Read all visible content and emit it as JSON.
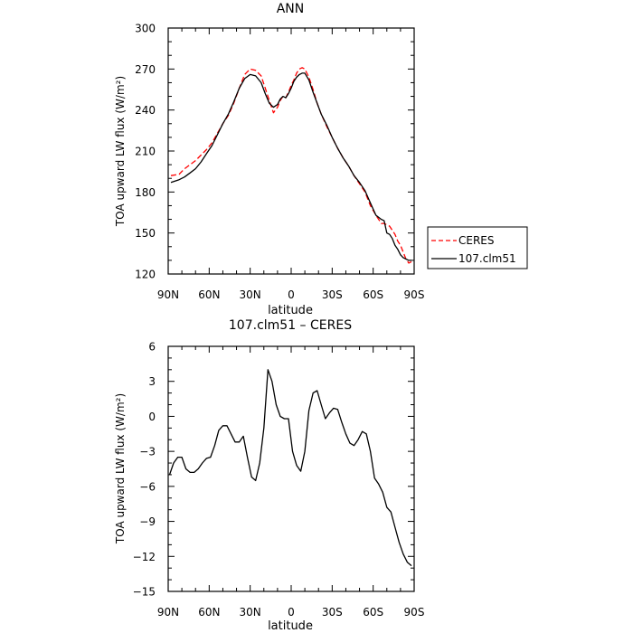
{
  "chart_data": [
    {
      "type": "line",
      "title": "ANN",
      "xlabel": "latitude",
      "ylabel": "TOA upward LW flux (W/m²)",
      "xlim": [
        90,
        -90
      ],
      "ylim": [
        120,
        300
      ],
      "yticks": [
        120,
        150,
        180,
        210,
        240,
        270,
        300
      ],
      "xtick_values": [
        90,
        60,
        30,
        0,
        -30,
        -60,
        -90
      ],
      "xtick_labels": [
        "90N",
        "60N",
        "30N",
        "0",
        "30S",
        "60S",
        "90S"
      ],
      "grid": false,
      "legend_position": "right",
      "series": [
        {
          "name": "CERES",
          "color": "#ff0000",
          "dash": "dashed",
          "x": [
            88,
            82,
            78,
            74,
            70,
            66,
            62,
            58,
            54,
            50,
            46,
            42,
            38,
            34,
            30,
            26,
            22,
            19,
            16,
            13,
            10,
            8,
            6,
            4,
            2,
            0,
            -2,
            -4,
            -6,
            -8,
            -10,
            -13,
            -16,
            -19,
            -22,
            -26,
            -30,
            -34,
            -38,
            -42,
            -46,
            -50,
            -54,
            -58,
            -62,
            -66,
            -68,
            -70,
            -72,
            -74,
            -76,
            -78,
            -80,
            -82,
            -84,
            -86,
            -88
          ],
          "y": [
            192,
            193,
            197,
            200,
            203,
            207,
            211,
            216,
            223,
            230,
            236,
            245,
            256,
            266,
            270,
            269,
            265,
            256,
            247,
            238,
            242,
            247,
            250,
            249,
            253,
            258,
            262,
            267,
            270,
            271,
            270,
            264,
            255,
            245,
            237,
            228,
            220,
            212,
            205,
            199,
            192,
            186,
            180,
            170,
            163,
            157,
            157,
            156,
            155,
            152,
            149,
            144,
            141,
            136,
            131,
            128,
            129
          ]
        },
        {
          "name": "107.clm51",
          "color": "#000000",
          "dash": "solid",
          "x": [
            88,
            82,
            78,
            74,
            70,
            66,
            62,
            58,
            54,
            50,
            46,
            42,
            38,
            34,
            30,
            26,
            22,
            19,
            16,
            13,
            10,
            8,
            6,
            4,
            2,
            0,
            -2,
            -4,
            -6,
            -8,
            -10,
            -13,
            -16,
            -19,
            -22,
            -26,
            -30,
            -34,
            -38,
            -42,
            -46,
            -50,
            -54,
            -58,
            -62,
            -66,
            -68,
            -70,
            -72,
            -74,
            -76,
            -78,
            -80,
            -82,
            -84,
            -86,
            -88
          ],
          "y": [
            187,
            189,
            191,
            194,
            197,
            202,
            208,
            214,
            222,
            230,
            237,
            246,
            256,
            263,
            266,
            265,
            260,
            252,
            245,
            242,
            244,
            248,
            250,
            249,
            252,
            256,
            261,
            264,
            266,
            267,
            267,
            262,
            253,
            245,
            237,
            229,
            220,
            212,
            205,
            199,
            192,
            187,
            181,
            172,
            163,
            160,
            159,
            150,
            149,
            146,
            141,
            138,
            134,
            132,
            131,
            130,
            130
          ]
        }
      ]
    },
    {
      "type": "line",
      "title": "107.clm51 – CERES",
      "xlabel": "latitude",
      "ylabel": "TOA upward LW flux (W/m²)",
      "xlim": [
        90,
        -90
      ],
      "ylim": [
        -15,
        6
      ],
      "yticks": [
        -15,
        -12,
        -9,
        -6,
        -3,
        0,
        3,
        6
      ],
      "xtick_values": [
        90,
        60,
        30,
        0,
        -30,
        -60,
        -90
      ],
      "xtick_labels": [
        "90N",
        "60N",
        "30N",
        "0",
        "30S",
        "60S",
        "90S"
      ],
      "grid": false,
      "series": [
        {
          "color": "#000000",
          "dash": "solid",
          "x": [
            89,
            86,
            83,
            80,
            77,
            74,
            71,
            68,
            65,
            62,
            59,
            56,
            53,
            50,
            47,
            44,
            41,
            38,
            35,
            32,
            29,
            26,
            23,
            20,
            17,
            14,
            11,
            8,
            5,
            2,
            -1,
            -4,
            -7,
            -10,
            -13,
            -16,
            -19,
            -22,
            -25,
            -28,
            -31,
            -34,
            -37,
            -40,
            -43,
            -46,
            -49,
            -52,
            -55,
            -58,
            -61,
            -64,
            -67,
            -70,
            -73,
            -76,
            -79,
            -82,
            -85,
            -88
          ],
          "y": [
            -5,
            -4,
            -3.5,
            -3.5,
            -4.5,
            -4.8,
            -4.8,
            -4.5,
            -4,
            -3.6,
            -3.5,
            -2.5,
            -1.2,
            -0.8,
            -0.8,
            -1.5,
            -2.2,
            -2.2,
            -1.7,
            -3.5,
            -5.2,
            -5.5,
            -4,
            -1,
            4,
            3,
            1,
            0,
            -0.2,
            -0.2,
            -3,
            -4.2,
            -4.7,
            -3,
            0.5,
            2,
            2.2,
            1,
            -0.2,
            0.3,
            0.7,
            0.6,
            -0.5,
            -1.5,
            -2.3,
            -2.5,
            -2,
            -1.3,
            -1.5,
            -3,
            -5.3,
            -5.8,
            -6.5,
            -7.8,
            -8.2,
            -9.5,
            -10.8,
            -11.8,
            -12.5,
            -12.8
          ]
        }
      ]
    }
  ]
}
